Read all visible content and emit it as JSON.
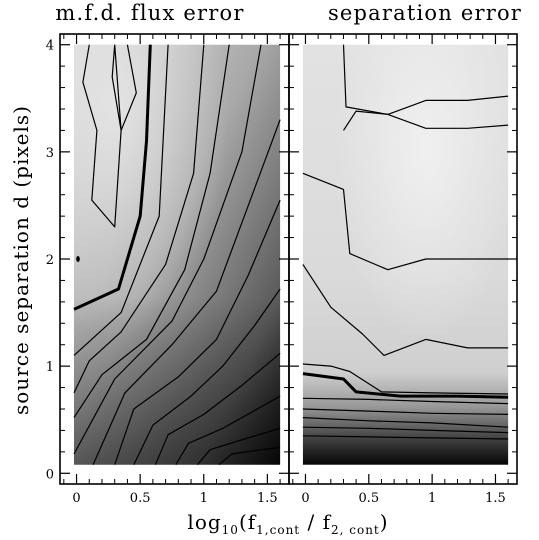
{
  "chart_data": [
    {
      "type": "heatmap",
      "title": "m.f.d. flux error",
      "xlabel": {
        "prefix": "log",
        "base": "10",
        "open": "(f",
        "sub1": "1,cont",
        "middle": " / f",
        "sub2": "2, cont",
        "close": ")"
      },
      "ylabel": "source separation d (pixels)",
      "xlim": [
        -0.13,
        1.67
      ],
      "ylim": [
        -0.1,
        4.1
      ],
      "xticks": [
        0,
        0.5,
        1,
        1.5
      ],
      "xtick_labels": [
        "0",
        "0.5",
        "1",
        "1.5"
      ],
      "yticks": [
        0,
        1,
        2,
        3,
        4
      ],
      "ytick_labels": [
        "0",
        "1",
        "2",
        "3",
        "4"
      ],
      "data_extent": {
        "x": [
          -0.02,
          1.6
        ],
        "y": [
          0.08,
          4.0
        ]
      },
      "shading": "grey, light at small ratio / large separation, dark at large ratio / small separation",
      "contours": [
        {
          "points": [
            [
              0.1,
              4.0
            ],
            [
              0.05,
              3.65
            ],
            [
              0.16,
              3.2
            ],
            [
              0.12,
              2.55
            ],
            [
              0.3,
              2.3
            ],
            [
              0.35,
              3.2
            ],
            [
              0.47,
              3.55
            ],
            [
              0.4,
              4.0
            ]
          ]
        },
        {
          "points": [
            [
              0.3,
              4.0
            ],
            [
              0.28,
              3.7
            ],
            [
              0.35,
              3.2
            ],
            [
              0.3,
              4.0
            ]
          ]
        },
        {
          "points": [
            [
              -0.02,
              1.53
            ],
            [
              0.33,
              1.72
            ],
            [
              0.5,
              2.4
            ],
            [
              0.55,
              3.1
            ],
            [
              0.58,
              4.0
            ]
          ],
          "bold": true
        },
        {
          "points": [
            [
              -0.02,
              1.1
            ],
            [
              0.35,
              1.5
            ],
            [
              0.65,
              2.4
            ],
            [
              0.72,
              4.0
            ]
          ]
        },
        {
          "points": [
            [
              -0.02,
              0.75
            ],
            [
              0.1,
              1.05
            ],
            [
              0.35,
              1.32
            ],
            [
              0.7,
              1.95
            ],
            [
              0.92,
              2.8
            ],
            [
              1.0,
              4.0
            ]
          ]
        },
        {
          "points": [
            [
              -0.02,
              0.52
            ],
            [
              0.2,
              0.92
            ],
            [
              0.55,
              1.25
            ],
            [
              0.85,
              1.9
            ],
            [
              1.05,
              2.8
            ],
            [
              1.2,
              4.0
            ]
          ]
        },
        {
          "points": [
            [
              -0.02,
              0.18
            ],
            [
              0.3,
              0.88
            ],
            [
              0.75,
              1.42
            ],
            [
              1.0,
              2.0
            ],
            [
              1.3,
              3.0
            ],
            [
              1.45,
              4.0
            ]
          ]
        },
        {
          "points": [
            [
              0.13,
              0.08
            ],
            [
              0.38,
              0.75
            ],
            [
              0.75,
              1.2
            ],
            [
              1.1,
              1.7
            ],
            [
              1.35,
              2.5
            ],
            [
              1.6,
              3.3
            ]
          ]
        },
        {
          "points": [
            [
              0.3,
              0.08
            ],
            [
              0.45,
              0.6
            ],
            [
              0.8,
              0.9
            ],
            [
              1.1,
              1.25
            ],
            [
              1.35,
              1.85
            ],
            [
              1.6,
              2.55
            ]
          ]
        },
        {
          "points": [
            [
              0.45,
              0.08
            ],
            [
              0.6,
              0.45
            ],
            [
              0.9,
              0.72
            ],
            [
              1.15,
              1.0
            ],
            [
              1.4,
              1.38
            ],
            [
              1.6,
              1.72
            ]
          ]
        },
        {
          "points": [
            [
              0.62,
              0.08
            ],
            [
              0.72,
              0.36
            ],
            [
              1.0,
              0.55
            ],
            [
              1.3,
              0.82
            ],
            [
              1.6,
              1.12
            ]
          ]
        },
        {
          "points": [
            [
              0.78,
              0.08
            ],
            [
              0.88,
              0.28
            ],
            [
              1.15,
              0.42
            ],
            [
              1.45,
              0.62
            ],
            [
              1.6,
              0.72
            ]
          ]
        },
        {
          "points": [
            [
              0.95,
              0.08
            ],
            [
              1.05,
              0.22
            ],
            [
              1.32,
              0.32
            ],
            [
              1.6,
              0.42
            ]
          ]
        },
        {
          "points": [
            [
              1.12,
              0.08
            ],
            [
              1.22,
              0.18
            ],
            [
              1.45,
              0.22
            ],
            [
              1.6,
              0.24
            ]
          ]
        }
      ]
    },
    {
      "type": "heatmap",
      "title": "separation error",
      "xlim": [
        -0.13,
        1.67
      ],
      "ylim": [
        -0.1,
        4.1
      ],
      "xticks": [
        0,
        0.5,
        1,
        1.5
      ],
      "xtick_labels": [
        "0",
        "0.5",
        "1",
        "1.5"
      ],
      "yticks": [
        0,
        1,
        2,
        3,
        4
      ],
      "data_extent": {
        "x": [
          -0.02,
          1.6
        ],
        "y": [
          0.08,
          4.0
        ]
      },
      "shading": "light grey over most of the panel, dark band at small separation",
      "contours": [
        {
          "points": [
            [
              0.3,
              4.0
            ],
            [
              0.32,
              3.42
            ],
            [
              0.65,
              3.35
            ],
            [
              0.95,
              3.48
            ],
            [
              1.28,
              3.48
            ],
            [
              1.6,
              3.52
            ]
          ]
        },
        {
          "points": [
            [
              0.3,
              3.2
            ],
            [
              0.4,
              3.38
            ],
            [
              0.65,
              3.35
            ],
            [
              0.95,
              3.22
            ],
            [
              1.28,
              3.22
            ],
            [
              1.6,
              3.25
            ]
          ]
        },
        {
          "points": [
            [
              -0.02,
              2.8
            ],
            [
              0.3,
              2.65
            ],
            [
              0.35,
              2.05
            ],
            [
              0.65,
              1.9
            ],
            [
              0.95,
              2.0
            ],
            [
              1.28,
              2.0
            ],
            [
              1.6,
              2.0
            ]
          ]
        },
        {
          "points": [
            [
              -0.02,
              1.95
            ],
            [
              0.2,
              1.55
            ],
            [
              0.45,
              1.3
            ],
            [
              0.62,
              1.1
            ],
            [
              0.95,
              1.25
            ],
            [
              1.28,
              1.17
            ],
            [
              1.6,
              1.17
            ]
          ]
        },
        {
          "points": [
            [
              -0.02,
              1.02
            ],
            [
              0.2,
              1.0
            ],
            [
              0.35,
              0.95
            ],
            [
              0.6,
              0.76
            ],
            [
              1.0,
              0.75
            ],
            [
              1.6,
              0.74
            ]
          ]
        },
        {
          "points": [
            [
              -0.02,
              0.93
            ],
            [
              0.3,
              0.88
            ],
            [
              0.4,
              0.76
            ],
            [
              0.75,
              0.72
            ],
            [
              1.2,
              0.72
            ],
            [
              1.6,
              0.71
            ]
          ],
          "bold": true
        },
        {
          "points": [
            [
              -0.02,
              0.7
            ],
            [
              0.5,
              0.69
            ],
            [
              1.0,
              0.67
            ],
            [
              1.6,
              0.65
            ]
          ]
        },
        {
          "points": [
            [
              -0.02,
              0.6
            ],
            [
              0.5,
              0.58
            ],
            [
              1.0,
              0.56
            ],
            [
              1.6,
              0.55
            ]
          ]
        },
        {
          "points": [
            [
              -0.02,
              0.52
            ],
            [
              0.5,
              0.49
            ],
            [
              1.0,
              0.47
            ],
            [
              1.6,
              0.43
            ]
          ]
        },
        {
          "points": [
            [
              -0.02,
              0.43
            ],
            [
              0.5,
              0.42
            ],
            [
              1.0,
              0.4
            ],
            [
              1.6,
              0.38
            ]
          ]
        },
        {
          "points": [
            [
              -0.02,
              0.35
            ],
            [
              0.5,
              0.34
            ],
            [
              1.0,
              0.33
            ],
            [
              1.6,
              0.32
            ]
          ]
        }
      ]
    }
  ]
}
